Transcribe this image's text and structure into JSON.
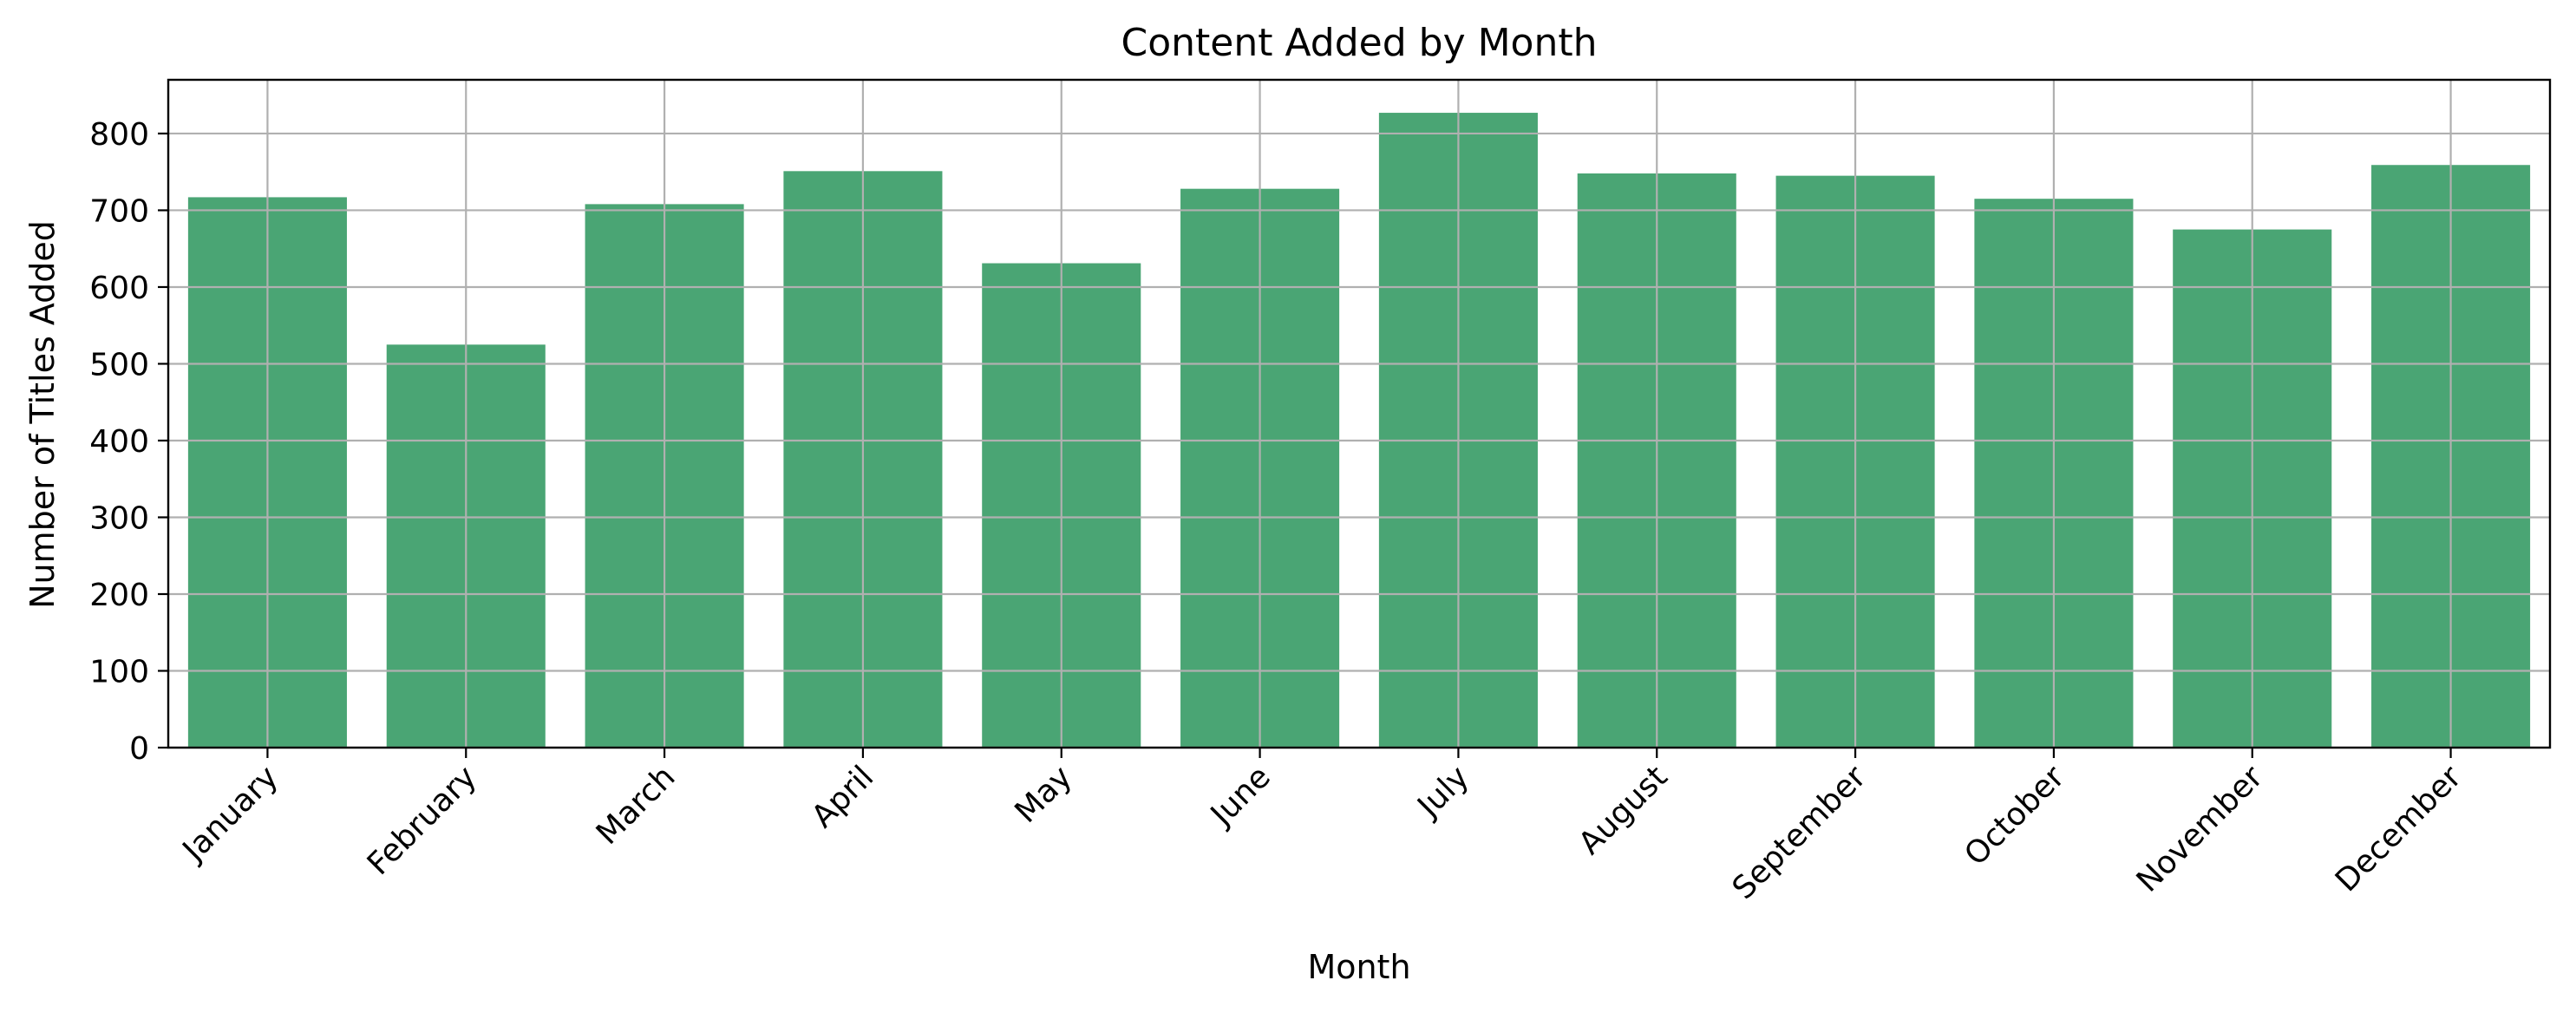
{
  "chart_data": {
    "type": "bar",
    "title": "Content Added by Month",
    "xlabel": "Month",
    "ylabel": "Number of Titles Added",
    "categories": [
      "January",
      "February",
      "March",
      "April",
      "May",
      "June",
      "July",
      "August",
      "September",
      "October",
      "November",
      "December"
    ],
    "values": [
      717,
      525,
      708,
      751,
      631,
      728,
      827,
      748,
      745,
      715,
      675,
      759
    ],
    "ylim": [
      0,
      870
    ],
    "yticks": [
      0,
      100,
      200,
      300,
      400,
      500,
      600,
      700,
      800
    ],
    "grid": true,
    "legend": "none",
    "colors": {
      "bar": "#4aa574",
      "grid": "#b0b0b0",
      "axis": "#000000"
    }
  }
}
